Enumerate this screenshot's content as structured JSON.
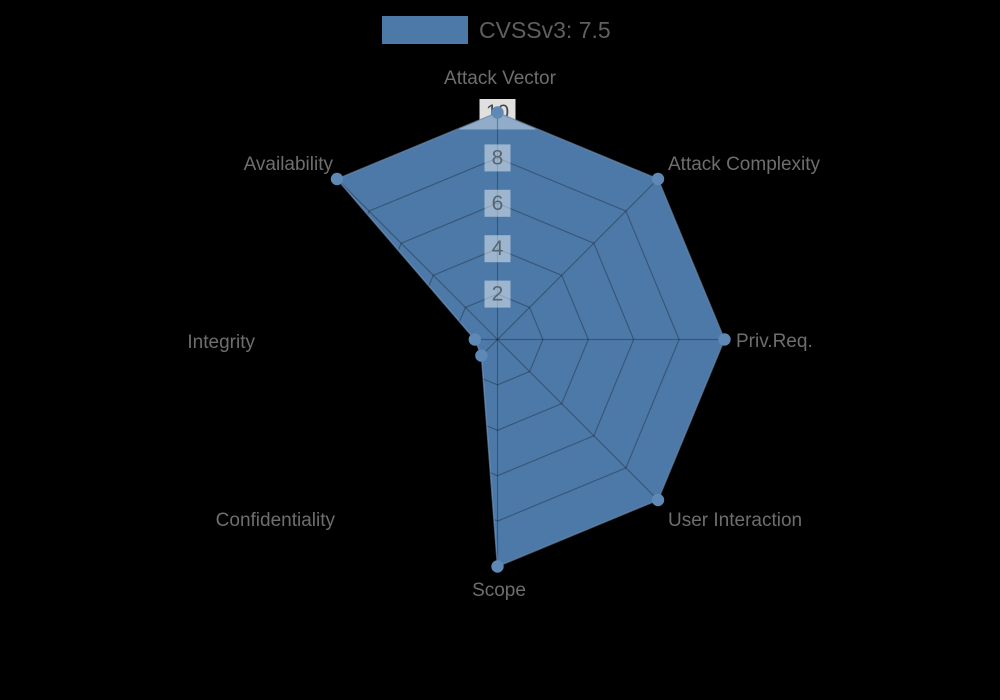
{
  "legend": {
    "label": "CVSSv3: 7.5",
    "swatch_color": "#4d79a8"
  },
  "chart_data": {
    "type": "radar",
    "title": "CVSSv3: 7.5",
    "axes": [
      "Attack Vector",
      "Attack Complexity",
      "Priv.Req.",
      "User Interaction",
      "Scope",
      "Confidentiality",
      "Integrity",
      "Availability"
    ],
    "series": [
      {
        "name": "CVSSv3: 7.5",
        "values": [
          10,
          10,
          10,
          10,
          10,
          1,
          1,
          10
        ]
      }
    ],
    "scale": {
      "min": 0,
      "max": 10,
      "ticks": [
        2,
        4,
        6,
        8,
        10
      ]
    },
    "legend_position": "top",
    "grid": "on",
    "colors": {
      "background": "#000000",
      "fill": "#4d79a8",
      "outline": "#7fa3c6",
      "marker": "#5e88b5",
      "grid_line": "rgba(0,0,0,0.28)",
      "axis_label": "#6e6e6e",
      "tick_text_outer": "#4a4a4a",
      "tick_text_inner": "#56646f",
      "tick_backdrop_outer": "rgba(255,255,255,0.88)",
      "tick_backdrop_inner": "rgba(255,255,255,0.45)",
      "apex_highlight": "rgba(255,255,255,0.38)"
    }
  }
}
